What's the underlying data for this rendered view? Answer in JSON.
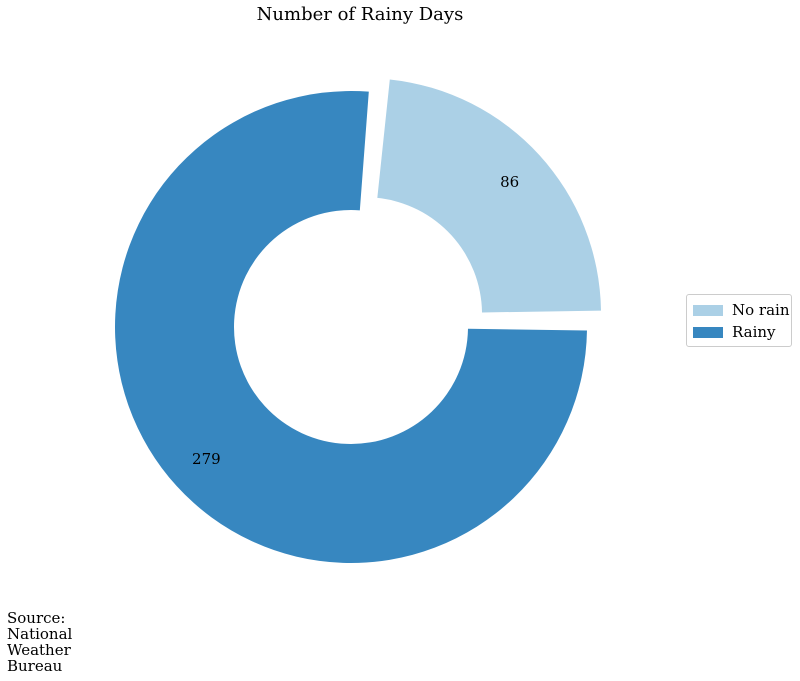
{
  "chart_data": {
    "type": "pie",
    "title": "Number of Rainy Days",
    "categories": [
      "No rain",
      "Rainy"
    ],
    "values": [
      86,
      279
    ],
    "donut": true,
    "colors": [
      "#abd0e6",
      "#3787c0"
    ],
    "exploded_slice": "No rain",
    "legend_position": "right",
    "legend": [
      "No rain",
      "Rainy"
    ],
    "data_labels": [
      "86",
      "279"
    ]
  },
  "source": {
    "lines": [
      "Source:",
      "National",
      "Weather",
      "Bureau"
    ]
  }
}
